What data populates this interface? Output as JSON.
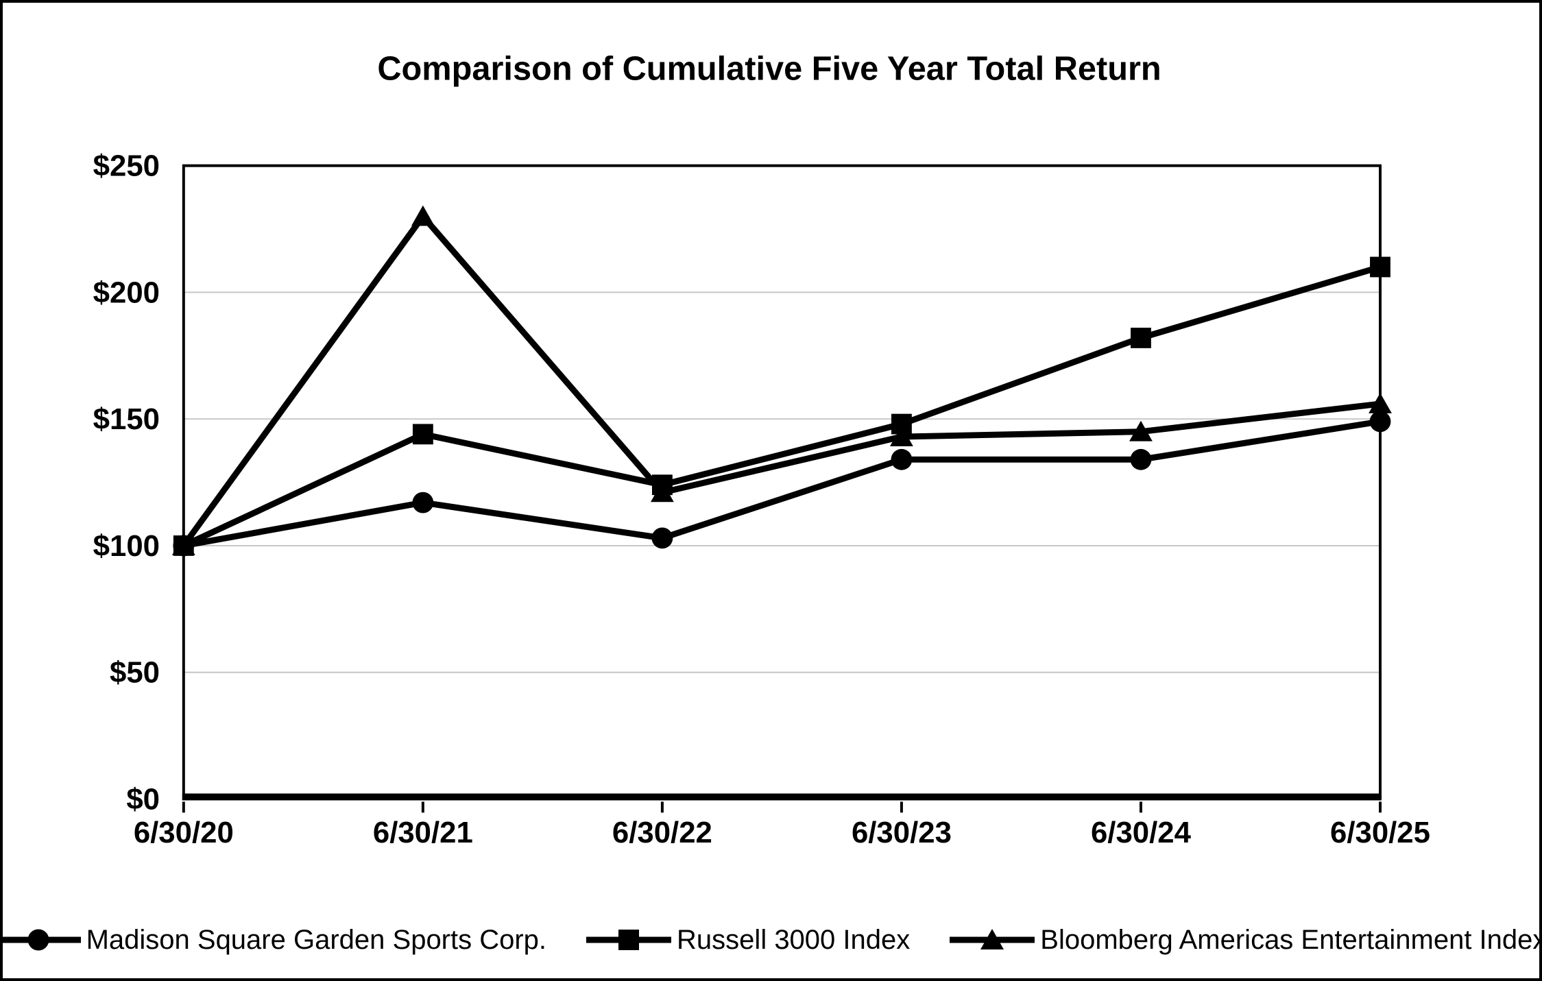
{
  "title": "Comparison of Cumulative Five Year Total Return",
  "chart_data": {
    "type": "line",
    "x_labels": [
      "6/30/20",
      "6/30/21",
      "6/30/22",
      "6/30/23",
      "6/30/24",
      "6/30/25"
    ],
    "y_ticks": [
      {
        "label": "$250",
        "value": 250
      },
      {
        "label": "$200",
        "value": 200
      },
      {
        "label": "$150",
        "value": 150
      },
      {
        "label": "$100",
        "value": 100
      },
      {
        "label": "$50",
        "value": 50
      },
      {
        "label": "$0",
        "value": 0
      }
    ],
    "ylim": [
      0,
      250
    ],
    "grid": true,
    "legend_position": "bottom",
    "line_color": "#000000",
    "grid_color": "#c6c6c6",
    "background_color": "#ffffff",
    "series": [
      {
        "name": "Madison Square Garden Sports Corp.",
        "marker": "circle",
        "values": [
          100,
          117,
          103,
          134,
          134,
          149
        ]
      },
      {
        "name": "Russell 3000 Index",
        "marker": "square",
        "values": [
          100,
          144,
          124,
          148,
          182,
          210
        ]
      },
      {
        "name": "Bloomberg Americas Entertainment Index",
        "marker": "triangle",
        "values": [
          100,
          230,
          121,
          143,
          145,
          156
        ]
      }
    ]
  }
}
